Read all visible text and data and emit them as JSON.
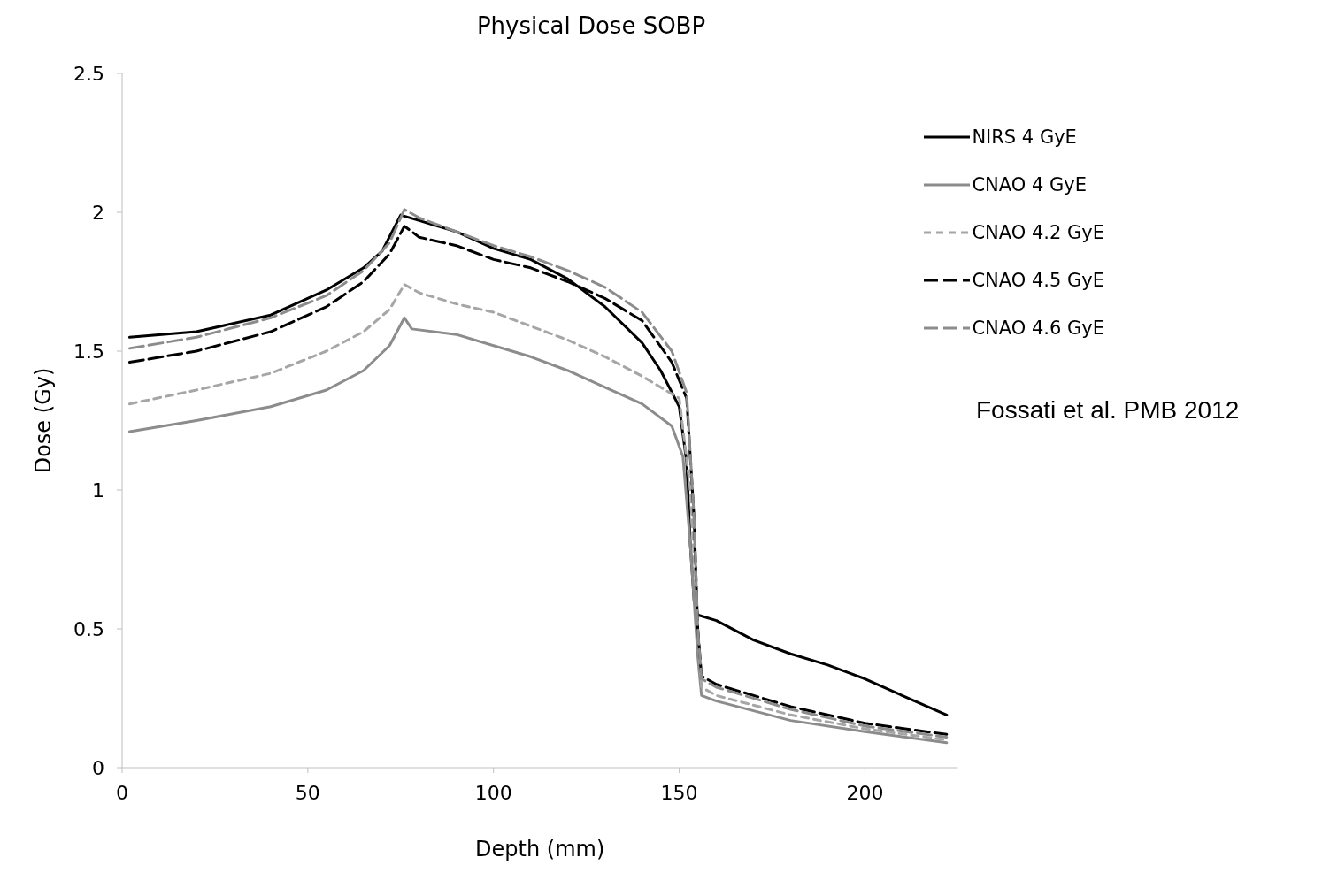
{
  "chart_data": {
    "type": "line",
    "title": "Physical Dose SOBP",
    "xlabel": "Depth (mm)",
    "ylabel": "Dose (Gy)",
    "xlim": [
      0,
      225
    ],
    "xticks": [
      0,
      50,
      100,
      150,
      200
    ],
    "ylim": [
      0,
      2.5
    ],
    "yticks": [
      0,
      0.5,
      1,
      1.5,
      2,
      2.5
    ],
    "grid": false,
    "legend": "top right",
    "marker": "none",
    "annotations": [
      "Fossati et al. PMB 2012"
    ],
    "series": [
      {
        "name": "NIRS 4 GyE",
        "color": "#000000",
        "line_style": "solid",
        "x": [
          2,
          20,
          40,
          55,
          65,
          70,
          75,
          80,
          90,
          100,
          110,
          120,
          130,
          140,
          145,
          150,
          152,
          153,
          154,
          155,
          160,
          170,
          180,
          190,
          200,
          210,
          222
        ],
        "values": [
          1.55,
          1.57,
          1.63,
          1.72,
          1.8,
          1.86,
          1.99,
          1.97,
          1.93,
          1.87,
          1.83,
          1.76,
          1.66,
          1.53,
          1.43,
          1.3,
          1.1,
          0.8,
          0.6,
          0.55,
          0.53,
          0.46,
          0.41,
          0.37,
          0.32,
          0.26,
          0.19
        ]
      },
      {
        "name": "CNAO 4 GyE",
        "color": "#8c8c8c",
        "line_style": "solid",
        "x": [
          2,
          20,
          40,
          55,
          65,
          72,
          76,
          78,
          90,
          100,
          110,
          120,
          130,
          140,
          148,
          151,
          153,
          155,
          156,
          160,
          180,
          200,
          222
        ],
        "values": [
          1.21,
          1.25,
          1.3,
          1.36,
          1.43,
          1.52,
          1.62,
          1.58,
          1.56,
          1.52,
          1.48,
          1.43,
          1.37,
          1.31,
          1.23,
          1.12,
          0.8,
          0.4,
          0.26,
          0.24,
          0.17,
          0.13,
          0.09
        ]
      },
      {
        "name": "CNAO 4.2 GyE",
        "color": "#a6a6a6",
        "line_style": "dashed",
        "x": [
          2,
          20,
          40,
          55,
          65,
          72,
          76,
          80,
          90,
          100,
          110,
          120,
          130,
          140,
          150,
          153,
          155,
          156,
          160,
          180,
          200,
          222
        ],
        "values": [
          1.31,
          1.36,
          1.42,
          1.5,
          1.57,
          1.65,
          1.74,
          1.71,
          1.67,
          1.64,
          1.59,
          1.54,
          1.48,
          1.41,
          1.33,
          1.0,
          0.5,
          0.29,
          0.26,
          0.19,
          0.14,
          0.1
        ]
      },
      {
        "name": "CNAO 4.5 GyE",
        "color": "#000000",
        "line_style": "longdash",
        "x": [
          2,
          20,
          40,
          55,
          65,
          72,
          76,
          80,
          90,
          100,
          110,
          120,
          130,
          140,
          148,
          152,
          154,
          155,
          156,
          160,
          180,
          200,
          222
        ],
        "values": [
          1.46,
          1.5,
          1.57,
          1.66,
          1.75,
          1.85,
          1.95,
          1.91,
          1.88,
          1.83,
          1.8,
          1.75,
          1.69,
          1.61,
          1.46,
          1.33,
          0.9,
          0.5,
          0.33,
          0.3,
          0.22,
          0.16,
          0.12
        ]
      },
      {
        "name": "CNAO 4.6 GyE",
        "color": "#8c8c8c",
        "line_style": "longdash",
        "x": [
          2,
          20,
          40,
          55,
          65,
          72,
          76,
          80,
          90,
          100,
          110,
          120,
          130,
          140,
          148,
          152,
          154,
          155,
          156,
          160,
          180,
          200,
          222
        ],
        "values": [
          1.51,
          1.55,
          1.62,
          1.7,
          1.79,
          1.89,
          2.01,
          1.98,
          1.93,
          1.88,
          1.84,
          1.79,
          1.73,
          1.64,
          1.5,
          1.35,
          0.9,
          0.5,
          0.32,
          0.29,
          0.21,
          0.15,
          0.11
        ]
      }
    ]
  }
}
